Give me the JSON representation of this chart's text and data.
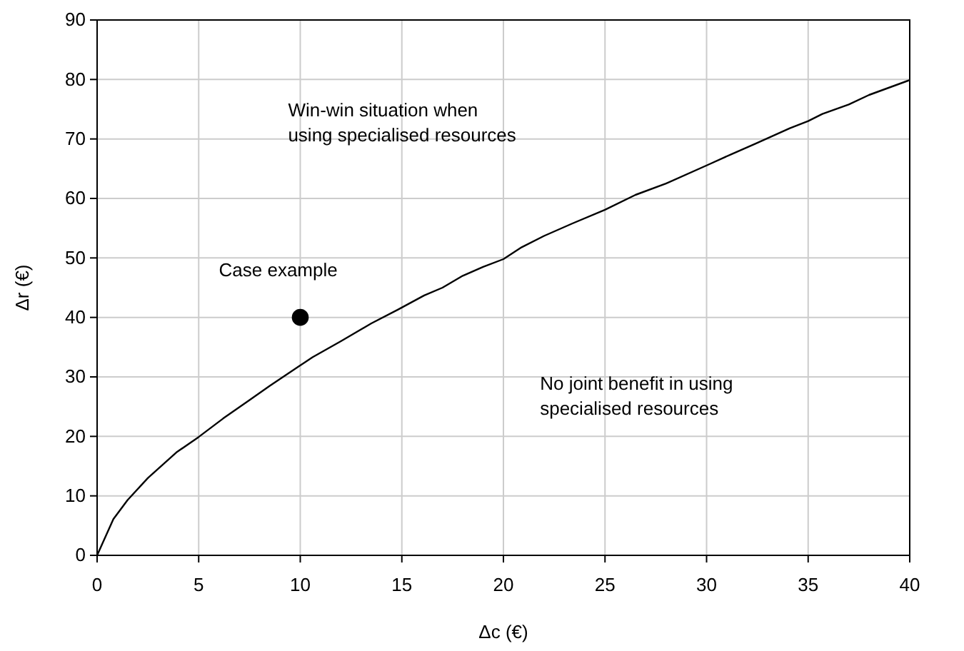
{
  "chart_data": {
    "type": "line",
    "xlabel": "Δc (€)",
    "ylabel": "Δr (€)",
    "xlim": [
      0,
      40
    ],
    "xticks": [
      0,
      5,
      10,
      15,
      20,
      25,
      30,
      35,
      40
    ],
    "ylim": [
      0,
      90
    ],
    "yticks": [
      0,
      10,
      20,
      30,
      40,
      50,
      60,
      70,
      80,
      90
    ],
    "grid": true,
    "series": [
      {
        "color": "#000000",
        "marker": "none",
        "x": [
          0,
          0.8,
          1.5,
          2.5,
          3.9,
          5,
          6.2,
          7.5,
          8.5,
          9.9,
          10.6,
          12,
          13.5,
          14.8,
          16.1,
          17,
          18,
          19,
          20,
          20.9,
          22,
          23.4,
          25,
          26.5,
          28,
          30.1,
          31.2,
          32.4,
          34.1,
          35,
          35.7,
          37,
          38,
          40
        ],
        "values": [
          0,
          6.1,
          9.3,
          13,
          17.3,
          19.9,
          23,
          26.1,
          28.5,
          31.7,
          33.3,
          36,
          39,
          41.3,
          43.7,
          45,
          47,
          48.5,
          49.8,
          51.8,
          53.7,
          55.8,
          58.1,
          60.6,
          62.5,
          65.7,
          67.4,
          69.2,
          71.8,
          73,
          74.2,
          75.8,
          77.4,
          79.9
        ]
      },
      {
        "type": "scatter",
        "color": "#000000",
        "marker": "circle",
        "x": [
          10
        ],
        "values": [
          40
        ]
      }
    ],
    "annotations": [
      "Win-win situation when\nusing specialised resources",
      {
        "text": "Case example",
        "x": 10,
        "y": 40
      },
      "No joint benefit in using\nspecialised resources"
    ]
  }
}
